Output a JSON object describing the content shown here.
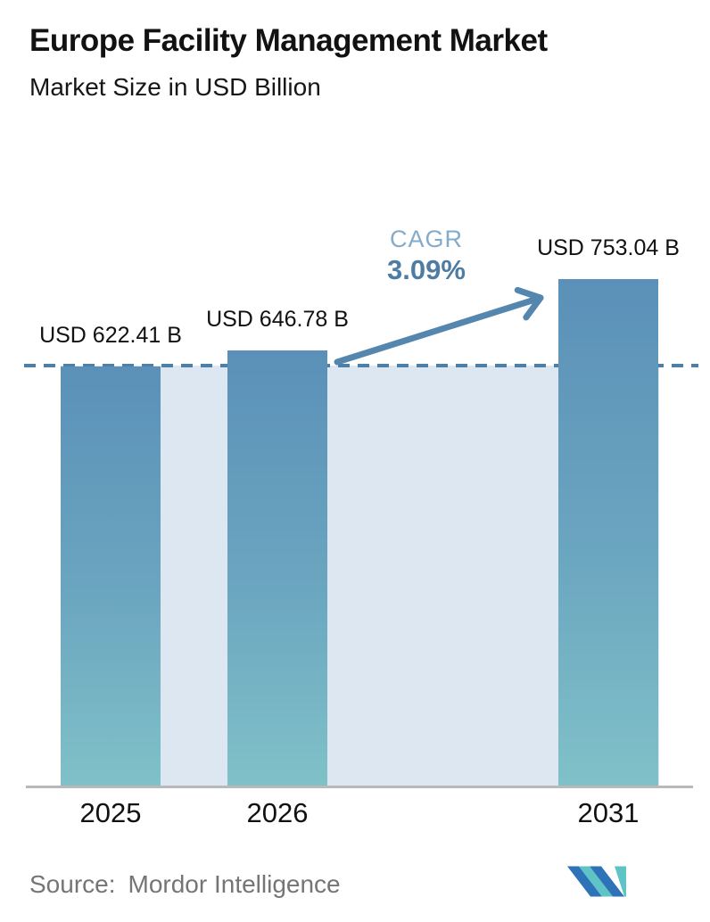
{
  "header": {
    "title": "Europe Facility Management Market",
    "subtitle": "Market Size in USD Billion"
  },
  "cagr": {
    "label": "CAGR",
    "value": "3.09%"
  },
  "footer": {
    "source_prefix": "Source:",
    "source_name": "Mordor Intelligence",
    "logo": "mordor-intelligence-logo"
  },
  "colors": {
    "bar_gradient_top": "#5b90b8",
    "bar_gradient_bottom": "#80c1c8",
    "plot_background": "#dce7f1",
    "dashed_line": "#4d80a8",
    "arrow": "#5586ad",
    "cagr_label": "#85abcb",
    "cagr_value": "#4e7ca3",
    "axis_line": "#b9b9b9",
    "source_text": "#757575",
    "logo_blue": "#2e72b8",
    "logo_teal": "#5fc4c6"
  },
  "chart_data": {
    "type": "bar",
    "title": "Europe Facility Management Market",
    "subtitle": "Market Size in USD Billion",
    "unit": "USD Billion",
    "categories": [
      "2025",
      "2026",
      "2031"
    ],
    "values": [
      622.41,
      646.78,
      753.04
    ],
    "value_labels": [
      "USD 622.41 B",
      "USD 646.78 B",
      "USD 753.04 B"
    ],
    "cagr_percent": 3.09,
    "annotations": {
      "cagr_text": "CAGR 3.09%",
      "dashed_reference_value": 622.41,
      "arrow": "from 2026 bar top to 2031 bar top"
    },
    "ylabel": "",
    "xlabel": "",
    "baseline_value": 0,
    "gridlines": false,
    "legend": false
  }
}
